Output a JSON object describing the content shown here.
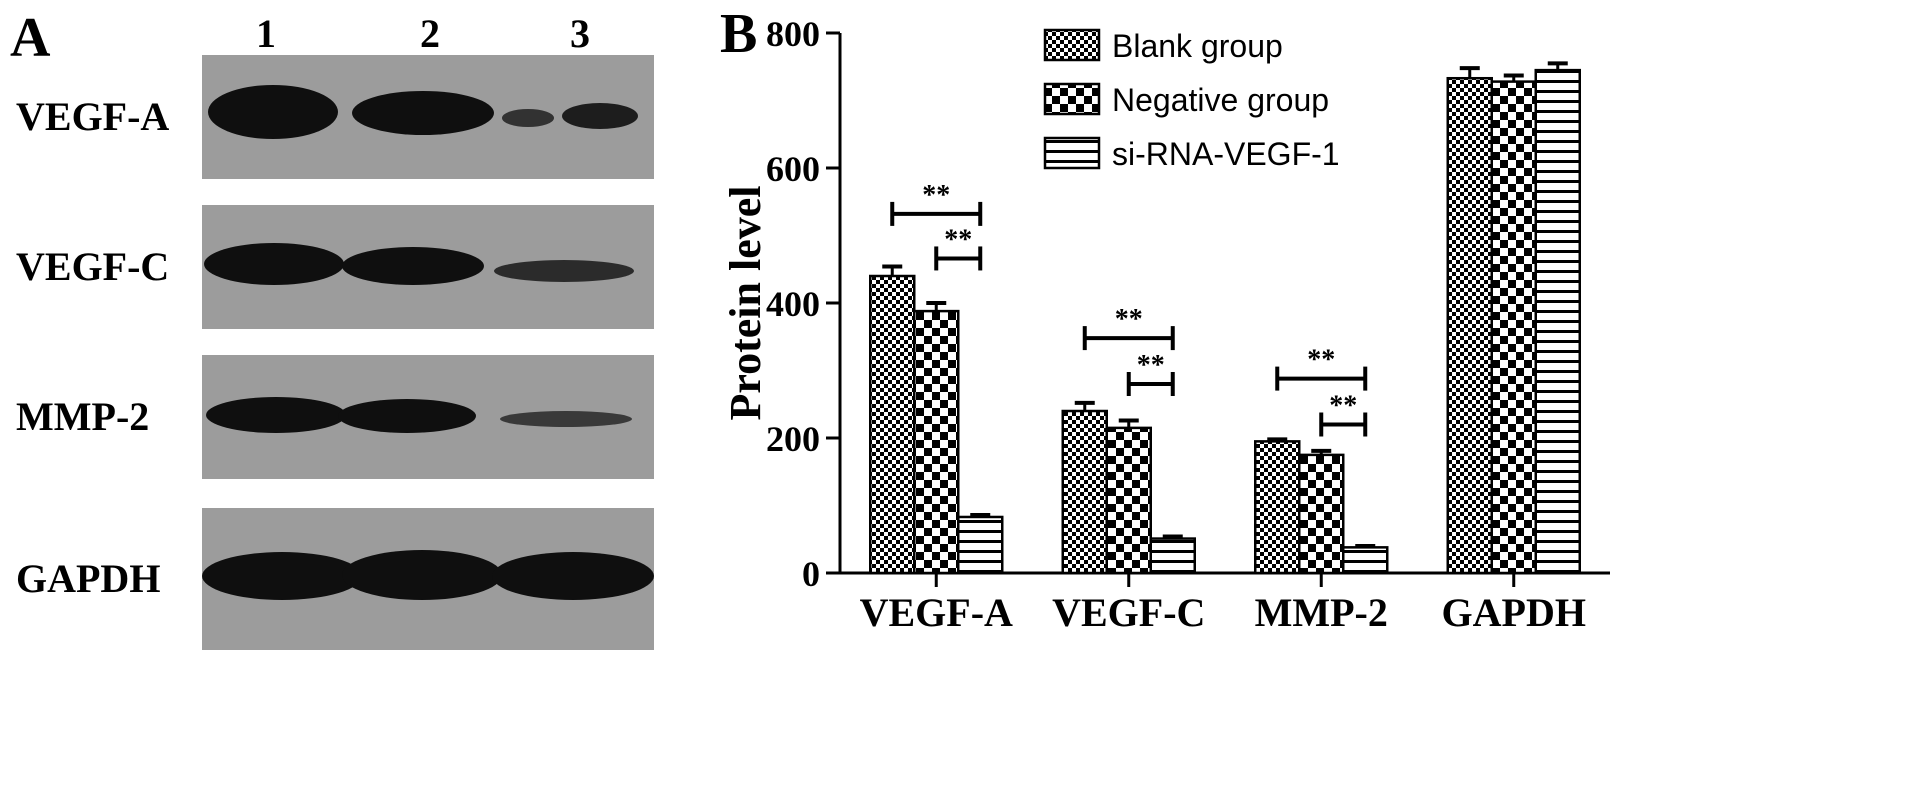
{
  "panel_a": {
    "letter": "A",
    "lanes": [
      "1",
      "2",
      "3"
    ],
    "blots": [
      {
        "label": "VEGF-A"
      },
      {
        "label": "VEGF-C"
      },
      {
        "label": "MMP-2"
      },
      {
        "label": "GAPDH"
      }
    ]
  },
  "panel_b": {
    "letter": "B"
  },
  "colors": {
    "ink": "#000000",
    "background": "#ffffff",
    "blot": "#9c9c9c",
    "band": "#0f0f0f"
  },
  "chart_data": {
    "type": "bar",
    "title": "",
    "xlabel": "",
    "ylabel": "Protein level",
    "ylim": [
      0,
      800
    ],
    "yticks": [
      0,
      200,
      400,
      600,
      800
    ],
    "grid": false,
    "legend_position": "top-center",
    "categories": [
      "VEGF-A",
      "VEGF-C",
      "MMP-2",
      "GAPDH"
    ],
    "series": [
      {
        "name": "Blank group",
        "pattern": "checker-fine",
        "values": [
          440,
          240,
          195,
          733
        ],
        "errors": [
          14,
          12,
          3,
          15
        ]
      },
      {
        "name": "Negative group",
        "pattern": "checker-coarse",
        "values": [
          388,
          215,
          175,
          728
        ],
        "errors": [
          12,
          11,
          6,
          9
        ]
      },
      {
        "name": "si-RNA-VEGF-1",
        "pattern": "horizontal-stripes",
        "values": [
          83,
          51,
          38,
          745
        ],
        "errors": [
          3,
          3,
          2,
          10
        ]
      }
    ],
    "annotations": [
      {
        "category": "VEGF-A",
        "from_series": 0,
        "to_series": 2,
        "label": "**",
        "y": 532
      },
      {
        "category": "VEGF-A",
        "from_series": 1,
        "to_series": 2,
        "label": "**",
        "y": 466
      },
      {
        "category": "VEGF-C",
        "from_series": 0,
        "to_series": 2,
        "label": "**",
        "y": 348
      },
      {
        "category": "VEGF-C",
        "from_series": 1,
        "to_series": 2,
        "label": "**",
        "y": 280
      },
      {
        "category": "MMP-2",
        "from_series": 0,
        "to_series": 2,
        "label": "**",
        "y": 288
      },
      {
        "category": "MMP-2",
        "from_series": 1,
        "to_series": 2,
        "label": "**",
        "y": 220
      }
    ]
  }
}
